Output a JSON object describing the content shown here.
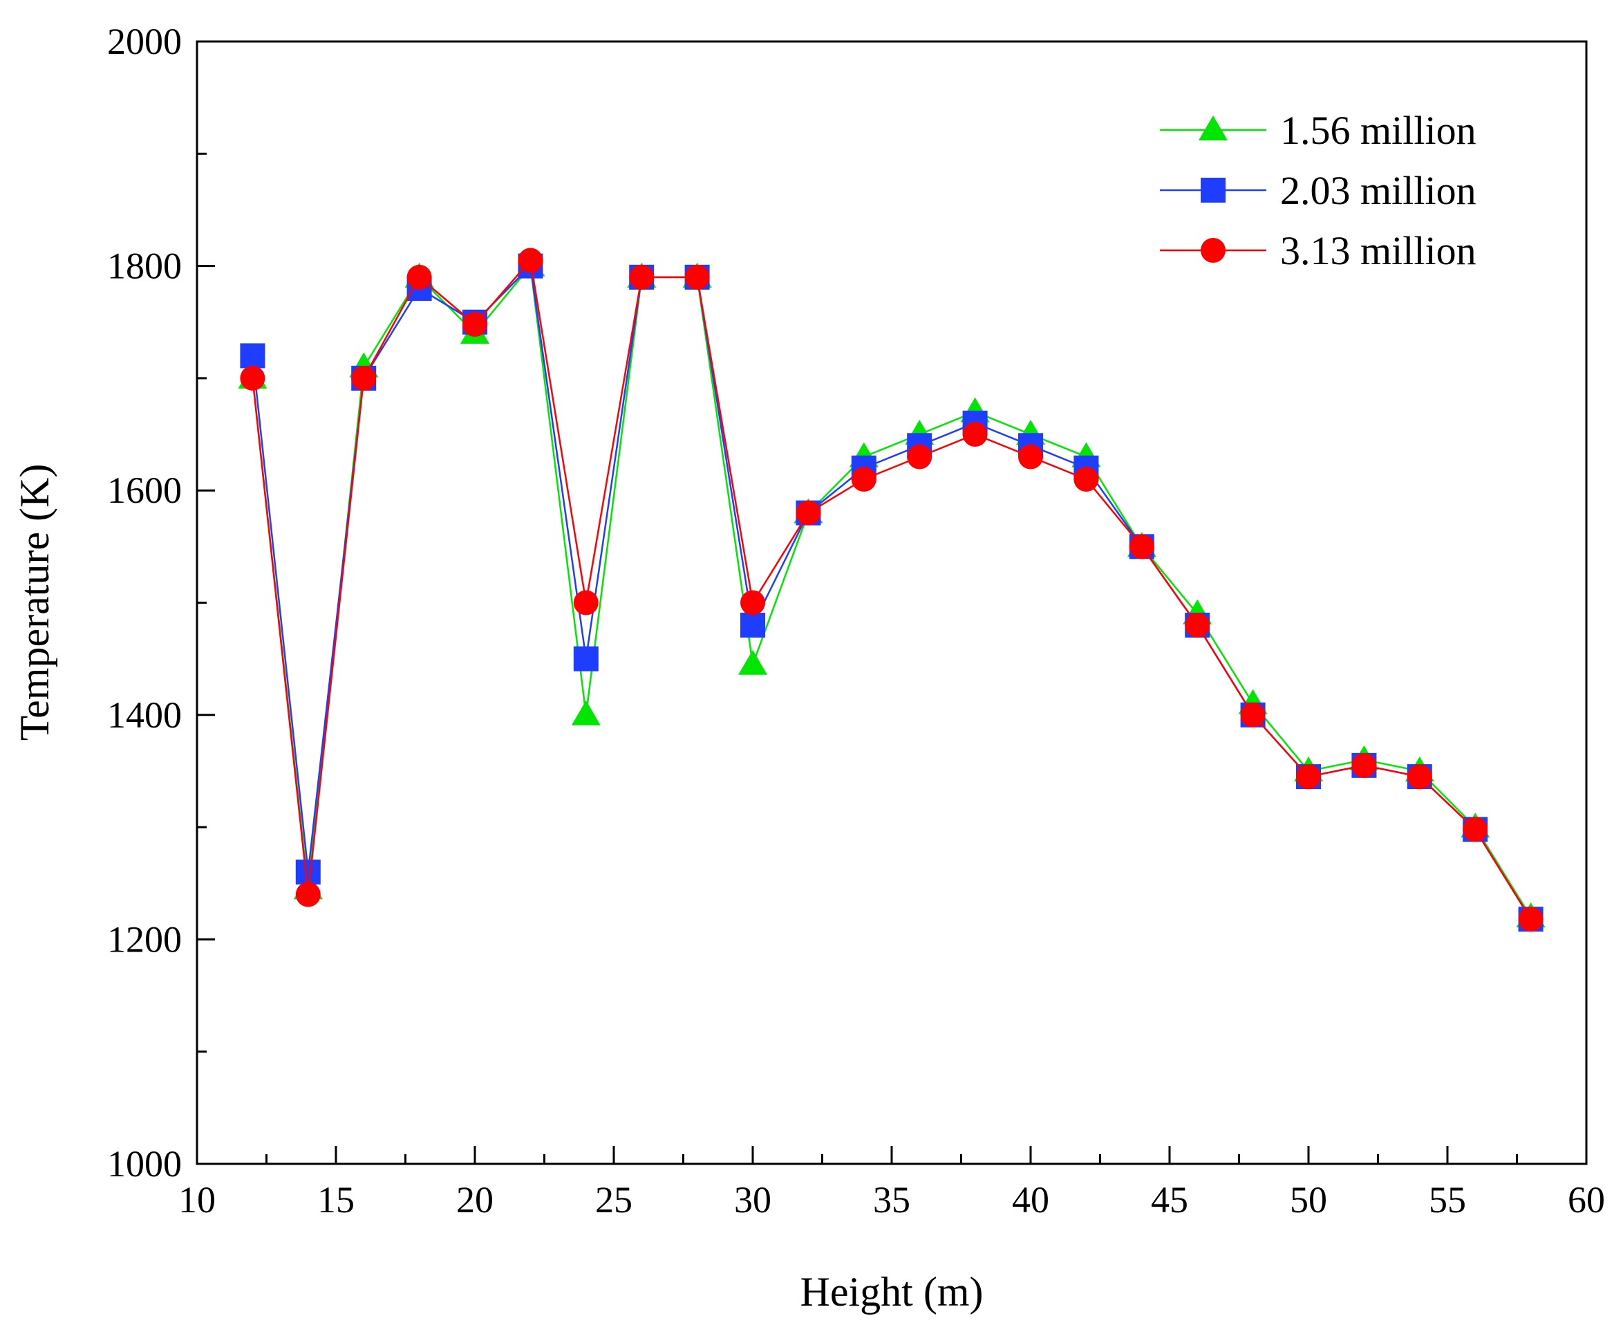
{
  "chart_data": {
    "type": "line",
    "xlabel": "Height (m)",
    "ylabel": "Temperature (K)",
    "xlim": [
      10,
      60
    ],
    "ylim": [
      1000,
      2000
    ],
    "x_ticks": [
      10,
      15,
      20,
      25,
      30,
      35,
      40,
      45,
      50,
      55,
      60
    ],
    "y_ticks": [
      1000,
      1200,
      1400,
      1600,
      1800,
      2000
    ],
    "grid": false,
    "legend_position": "top-right",
    "x": [
      12,
      14,
      16,
      18,
      20,
      22,
      24,
      26,
      28,
      30,
      32,
      34,
      36,
      38,
      40,
      42,
      44,
      46,
      48,
      50,
      52,
      54,
      56,
      58
    ],
    "series": [
      {
        "name": "1.56 million",
        "color": "#00e600",
        "marker": "triangle",
        "values": [
          1700,
          1245,
          1710,
          1790,
          1740,
          1800,
          1400,
          1790,
          1790,
          1445,
          1580,
          1630,
          1650,
          1670,
          1650,
          1630,
          1550,
          1490,
          1410,
          1350,
          1360,
          1350,
          1300,
          1220
        ]
      },
      {
        "name": "2.03 million",
        "color": "#1f3dff",
        "marker": "square",
        "values": [
          1720,
          1260,
          1700,
          1780,
          1750,
          1800,
          1450,
          1790,
          1790,
          1480,
          1580,
          1620,
          1640,
          1660,
          1640,
          1620,
          1550,
          1480,
          1400,
          1345,
          1355,
          1345,
          1298,
          1218
        ]
      },
      {
        "name": "3.13 million",
        "color": "#ff0000",
        "marker": "circle",
        "values": [
          1700,
          1240,
          1700,
          1790,
          1748,
          1805,
          1500,
          1790,
          1790,
          1500,
          1580,
          1610,
          1630,
          1650,
          1630,
          1610,
          1550,
          1480,
          1400,
          1345,
          1355,
          1345,
          1298,
          1218
        ]
      }
    ]
  }
}
